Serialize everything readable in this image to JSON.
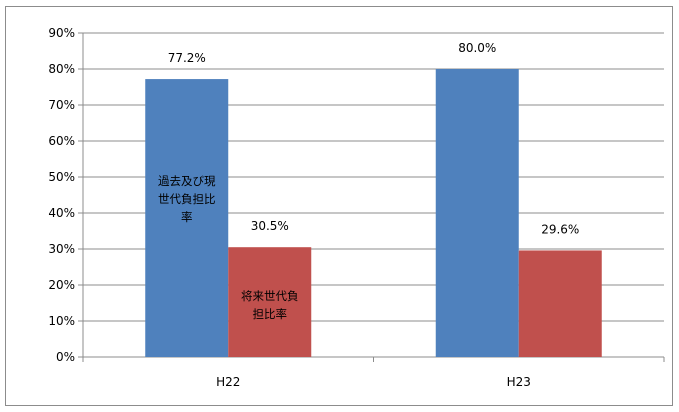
{
  "chart_data": {
    "type": "bar",
    "categories": [
      "H22",
      "H23"
    ],
    "series": [
      {
        "name": "過去及び現世代負担比率",
        "color": "#4f81bd",
        "values": [
          77.2,
          80.0
        ],
        "data_labels": [
          "77.2%",
          "80.0%"
        ],
        "inbar_label": "過去及び現世代負担比率"
      },
      {
        "name": "将来世代負担比率",
        "color": "#c0504d",
        "values": [
          30.5,
          29.6
        ],
        "data_labels": [
          "30.5%",
          "29.6%"
        ],
        "inbar_label": "将来世代負担比率"
      }
    ],
    "y_ticks": [
      "0%",
      "10%",
      "20%",
      "30%",
      "40%",
      "50%",
      "60%",
      "70%",
      "80%",
      "90%"
    ],
    "ylim": [
      0,
      90
    ],
    "grid": true,
    "legend": "none"
  },
  "colors": {
    "grid": "#8c8c8c",
    "axis": "#8c8c8c"
  }
}
